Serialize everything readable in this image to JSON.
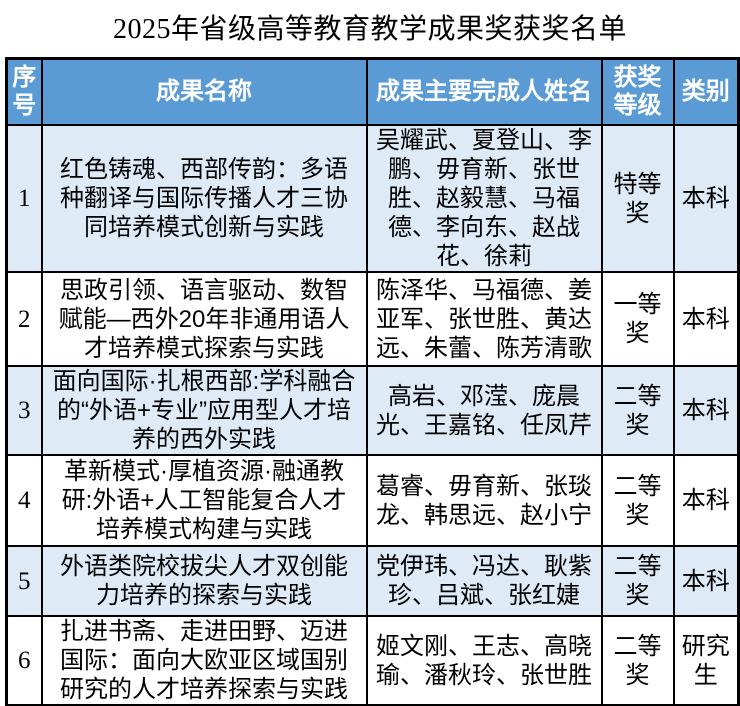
{
  "title": "2025年省级高等教育教学成果奖获奖名单",
  "colors": {
    "header_bg": "#5b9bd5",
    "header_text": "#ffffff",
    "band_bg": "#deeaf6",
    "border_color": "#000000"
  },
  "table": {
    "headers": [
      "序号",
      "成果名称",
      "成果主要完成人姓名",
      "获奖等级",
      "类别"
    ],
    "rows": [
      {
        "no": "1",
        "name": "红色铸魂、西部传韵：多语种翻译与国际传播人才三协同培养模式创新与实践",
        "people": "吴耀武、夏登山、李鹏、毋育新、张世胜、赵毅慧、马福德、李向东、赵战花、徐莉",
        "award": "特等奖",
        "category": "本科"
      },
      {
        "no": "2",
        "name": "思政引领、语言驱动、数智赋能—西外20年非通用语人才培养模式探索与实践",
        "people": "陈泽华、马福德、姜亚军、张世胜、黄达远、朱蕾、陈芳清歌",
        "award": "一等奖",
        "category": "本科"
      },
      {
        "no": "3",
        "name": "面向国际·扎根西部:学科融合的“外语+专业”应用型人才培养的西外实践",
        "people": "高岩、邓滢、庞晨光、王嘉铭、任凤芹",
        "award": "二等奖",
        "category": "本科"
      },
      {
        "no": "4",
        "name": "革新模式·厚植资源·融通教研:外语+人工智能复合人才培养模式构建与实践",
        "people": "葛睿、毋育新、张琰龙、韩思远、赵小宁",
        "award": "二等奖",
        "category": "本科"
      },
      {
        "no": "5",
        "name": "外语类院校拔尖人才双创能力培养的探索与实践",
        "people": "党伊玮、冯达、耿紫珍、吕斌、张红婕",
        "award": "二等奖",
        "category": "本科"
      },
      {
        "no": "6",
        "name": "扎进书斋、走进田野、迈进国际：面向大欧亚区域国别研究的人才培养探索与实践",
        "people": "姬文刚、王志、高晓瑜、潘秋玲、张世胜",
        "award": "二等奖",
        "category": "研究生"
      }
    ]
  }
}
